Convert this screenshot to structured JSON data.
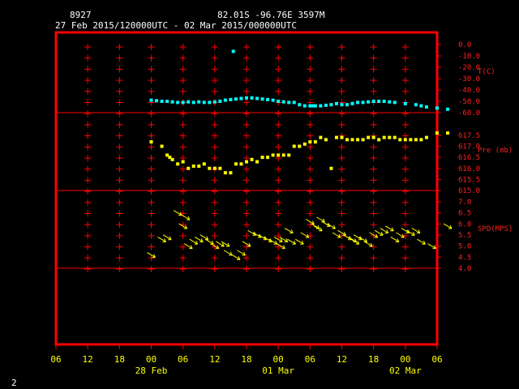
{
  "header": {
    "station": "8927",
    "location": "82.01S   -96.76E   3597M",
    "time_range": "27 Feb 2015/120000UTC - 02 Mar 2015/000000UTC"
  },
  "footer": {
    "page_number": "2"
  },
  "colors": {
    "background": "#000000",
    "frame": "#ff0000",
    "temperature": "#00ffff",
    "pressure": "#ffff00",
    "wind": "#ffff00",
    "axis_text": "#ffff00",
    "right_labels": "#ff2020",
    "header_text": "#ffffff"
  },
  "chart_data": [
    {
      "type": "scatter",
      "name": "T(C)",
      "ylabel": "T(C)",
      "ylim": [
        -60,
        0
      ],
      "yticks": [
        "0.0",
        "-10.0",
        "-20.0",
        "-30.0",
        "-40.0",
        "-50.0",
        "-60.0"
      ],
      "x": [
        12,
        13,
        14,
        15,
        16,
        17,
        18,
        19,
        20,
        21,
        22,
        23,
        24,
        25,
        26,
        27,
        27.5,
        28,
        29,
        30,
        31,
        32,
        33,
        34,
        35,
        36,
        37,
        38,
        39,
        40,
        41,
        42,
        42.5,
        43,
        44,
        45,
        46,
        47,
        48,
        49,
        50,
        51,
        52,
        53,
        54,
        55,
        56,
        57,
        58,
        60,
        62,
        63,
        64,
        66,
        68
      ],
      "values": [
        -49,
        -49.5,
        -50,
        -50,
        -50.5,
        -51,
        -51,
        -50.5,
        -51,
        -50.5,
        -51,
        -51,
        -50.5,
        -50,
        -49,
        -48.5,
        -6,
        -48,
        -47.5,
        -47,
        -47,
        -47.5,
        -48,
        -48.5,
        -49,
        -50,
        -50.5,
        -51,
        -51,
        -53,
        -54,
        -54,
        -54,
        -54,
        -54,
        -53.5,
        -53,
        -52,
        -53,
        -53,
        -52,
        -51,
        -51,
        -50.5,
        -50,
        -50,
        -50,
        -50.5,
        -51,
        -52,
        -53,
        -54,
        -55,
        -56,
        -57
      ]
    },
    {
      "type": "scatter",
      "name": "Pre (mb)",
      "ylabel": "Pre (mb)",
      "ylim": [
        615.0,
        617.9
      ],
      "yticks": [
        "617.5",
        "617.0",
        "616.5",
        "616.0",
        "615.5",
        "615.0"
      ],
      "x": [
        12,
        14,
        15,
        15.5,
        16,
        17,
        18,
        19,
        20,
        21,
        22,
        23,
        24,
        25,
        26,
        27,
        28,
        29,
        30,
        31,
        32,
        33,
        34,
        35,
        36,
        37,
        38,
        39,
        40,
        41,
        42,
        43,
        44,
        45,
        46,
        47,
        48,
        49,
        50,
        51,
        52,
        53,
        54,
        55,
        56,
        57,
        58,
        59,
        60,
        61,
        62,
        63,
        64,
        66,
        68
      ],
      "values": [
        617.2,
        617.0,
        616.6,
        616.5,
        616.4,
        616.2,
        616.3,
        616.0,
        616.1,
        616.1,
        616.2,
        616.0,
        616.0,
        616.0,
        615.8,
        615.8,
        616.2,
        616.2,
        616.3,
        616.4,
        616.3,
        616.5,
        616.5,
        616.6,
        616.6,
        616.6,
        616.6,
        617.0,
        617.0,
        617.1,
        617.2,
        617.2,
        617.4,
        617.3,
        616.0,
        617.4,
        617.4,
        617.3,
        617.3,
        617.3,
        617.3,
        617.4,
        617.4,
        617.3,
        617.4,
        617.4,
        617.4,
        617.3,
        617.3,
        617.3,
        617.3,
        617.3,
        617.4,
        617.6,
        617.6
      ]
    },
    {
      "type": "scatter",
      "name": "SPD(MPS)",
      "ylabel": "SPD(MPS)",
      "ylim": [
        4.0,
        7.0
      ],
      "yticks": [
        "7.0",
        "6.5",
        "6.0",
        "5.5",
        "5.0",
        "4.5",
        "4.0"
      ],
      "x": [
        12,
        14,
        15,
        17,
        18,
        18.5,
        19,
        20,
        21,
        22,
        23,
        24,
        25,
        26,
        26.5,
        28,
        29,
        30,
        31,
        32,
        33,
        34,
        35,
        36,
        36.5,
        37,
        38,
        38.5,
        40,
        41,
        42,
        43,
        43.5,
        44,
        45,
        46,
        47,
        48,
        49,
        50,
        50.5,
        51,
        52,
        53,
        54,
        55,
        56,
        57,
        58,
        59,
        60,
        61,
        62,
        63,
        65,
        68
      ],
      "values": [
        4.6,
        5.3,
        5.4,
        6.5,
        5.9,
        6.3,
        5.0,
        5.2,
        5.3,
        5.4,
        5.2,
        5.0,
        5.1,
        5.1,
        4.7,
        4.5,
        4.7,
        5.1,
        5.6,
        5.5,
        5.4,
        5.3,
        5.2,
        5.3,
        5.0,
        5.3,
        5.7,
        5.2,
        5.2,
        5.5,
        6.1,
        5.9,
        5.8,
        6.2,
        6.0,
        5.9,
        5.5,
        5.6,
        5.4,
        5.3,
        5.2,
        5.4,
        5.3,
        5.1,
        5.5,
        5.6,
        5.7,
        5.8,
        5.3,
        5.5,
        5.7,
        5.6,
        5.7,
        5.2,
        5.0,
        5.9
      ]
    }
  ],
  "x_axis": {
    "range_hours": [
      -6,
      66
    ],
    "ticks": [
      -6,
      0,
      6,
      12,
      18,
      24,
      30,
      36,
      42,
      48,
      54,
      60,
      66
    ],
    "tick_labels": [
      "06",
      "12",
      "18",
      "00",
      "06",
      "12",
      "18",
      "00",
      "06",
      "12",
      "18",
      "00",
      "06"
    ],
    "date_labels": [
      "28 Feb",
      "01 Mar",
      "02 Mar"
    ],
    "date_label_hours": [
      12,
      36,
      60
    ]
  }
}
